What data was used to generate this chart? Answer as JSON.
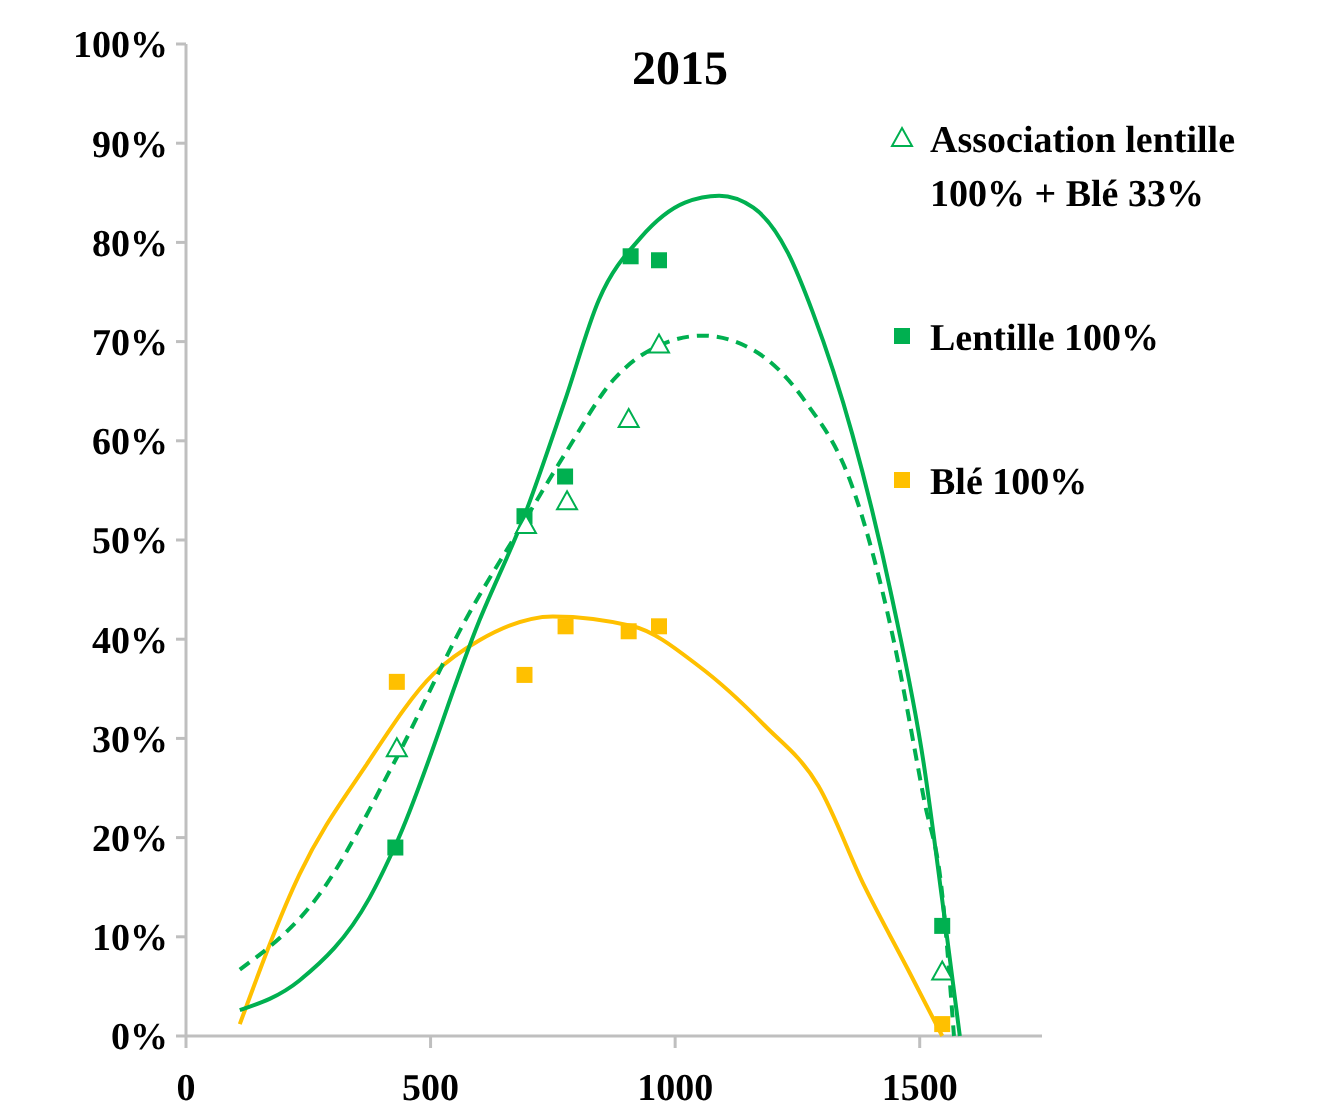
{
  "chart_data": {
    "type": "scatter",
    "title": "2015",
    "xlim": [
      0,
      1750
    ],
    "xticks": [
      0,
      500,
      1000,
      1500
    ],
    "ylim": [
      0,
      100
    ],
    "yticks": [
      {
        "value": 0,
        "label": "0%"
      },
      {
        "value": 10,
        "label": "10%"
      },
      {
        "value": 20,
        "label": "20%"
      },
      {
        "value": 30,
        "label": "30%"
      },
      {
        "value": 40,
        "label": "40%"
      },
      {
        "value": 50,
        "label": "50%"
      },
      {
        "value": 60,
        "label": "60%"
      },
      {
        "value": 70,
        "label": "70%"
      },
      {
        "value": 80,
        "label": "80%"
      },
      {
        "value": 90,
        "label": "90%"
      },
      {
        "value": 100,
        "label": "100%"
      }
    ],
    "grid": false,
    "legend": "top right",
    "series": [
      {
        "name": "Association lentille 100% + Blé 33%",
        "marker": "triangle",
        "color": "#00b050",
        "x": [
          431,
          695,
          779,
          905,
          967,
          1546
        ],
        "values": [
          29.0,
          51.5,
          53.9,
          62.2,
          69.7,
          6.5
        ]
      },
      {
        "name": "Lentille 100%",
        "marker": "square",
        "color": "#00b050",
        "x": [
          428,
          692,
          775,
          909,
          967,
          1546
        ],
        "values": [
          19.0,
          52.4,
          56.4,
          78.6,
          78.2,
          11.1
        ]
      },
      {
        "name": "Blé 100%",
        "marker": "square",
        "color": "#ffc000",
        "x": [
          431,
          692,
          776,
          905,
          967,
          1546
        ],
        "values": [
          35.7,
          36.4,
          41.3,
          40.8,
          41.3,
          1.2
        ]
      },
      {
        "type": "line",
        "marker": "none",
        "line_style": "dashed",
        "color": "#00b050",
        "x": [
          110,
          273,
          428,
          571,
          693,
          775,
          873,
          967,
          1056,
          1158,
          1264,
          1362,
          1444,
          1509,
          1546,
          1570
        ],
        "values": [
          6.7,
          14.3,
          27.8,
          41.9,
          52.0,
          58.7,
          66.1,
          69.6,
          70.6,
          69.2,
          64.1,
          55.4,
          40.5,
          23.8,
          14.3,
          0
        ]
      },
      {
        "type": "line",
        "marker": "none",
        "line_style": "solid",
        "color": "#00b050",
        "x": [
          110,
          232,
          375,
          428,
          600,
          693,
          775,
          844,
          930,
          1020,
          1090,
          1160,
          1230,
          1281,
          1362,
          1444,
          1509,
          1546,
          1582
        ],
        "values": [
          2.6,
          5.6,
          13.9,
          19.2,
          41.9,
          52.6,
          64.1,
          74.2,
          80.5,
          84,
          84.7,
          83.5,
          79,
          73,
          60.7,
          44,
          27.2,
          13.7,
          0
        ]
      },
      {
        "type": "line",
        "marker": "none",
        "line_style": "solid",
        "color": "#ffc000",
        "x": [
          110,
          232,
          367,
          506,
          600,
          750,
          914,
          1048,
          1183,
          1293,
          1387,
          1476,
          1546
        ],
        "values": [
          1.2,
          16.3,
          27.2,
          36.5,
          39.9,
          42.3,
          41.3,
          37.3,
          31.3,
          25.2,
          15.1,
          6.7,
          0
        ]
      }
    ]
  }
}
